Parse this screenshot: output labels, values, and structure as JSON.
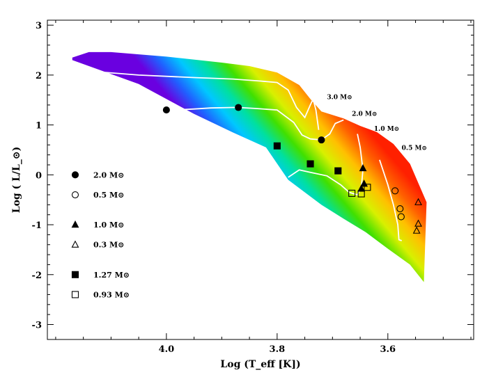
{
  "chart_data": {
    "type": "scatter",
    "title": "",
    "xlabel": "Log (T_eff [K])",
    "ylabel": "Log ( L/L_⊙)",
    "x_axis": {
      "range": [
        4.215,
        3.445
      ],
      "reversed": true,
      "ticks": [
        4.0,
        3.8,
        3.6
      ],
      "tick_labels": [
        "4.0",
        "3.8",
        "3.6"
      ]
    },
    "y_axis": {
      "range": [
        -3.3,
        3.1
      ],
      "ticks": [
        3,
        2,
        1,
        0,
        -1,
        -2,
        -3
      ],
      "tick_labels": [
        "3",
        "2",
        "1",
        "0",
        "-1",
        "-2",
        "-3"
      ]
    },
    "grid": false,
    "legend_position": "left",
    "background": {
      "description_free": true,
      "colormap": [
        "#6a00e0",
        "#2060ff",
        "#00c8ff",
        "#00e0a0",
        "#40e000",
        "#d8f000",
        "#ffc000",
        "#ff6000",
        "#ff2000"
      ],
      "band_top": [
        [
          4.17,
          2.35
        ],
        [
          4.14,
          2.46
        ],
        [
          4.1,
          2.46
        ],
        [
          4.0,
          2.37
        ],
        [
          3.9,
          2.25
        ],
        [
          3.85,
          2.18
        ],
        [
          3.8,
          2.05
        ],
        [
          3.76,
          1.8
        ],
        [
          3.74,
          1.52
        ],
        [
          3.72,
          1.27
        ],
        [
          3.68,
          1.13
        ],
        [
          3.65,
          0.98
        ],
        [
          3.62,
          0.86
        ],
        [
          3.59,
          0.62
        ],
        [
          3.56,
          0.22
        ],
        [
          3.53,
          -0.55
        ]
      ],
      "band_bottom": [
        [
          4.17,
          2.3
        ],
        [
          4.05,
          1.82
        ],
        [
          3.95,
          1.22
        ],
        [
          3.88,
          0.85
        ],
        [
          3.82,
          0.55
        ],
        [
          3.78,
          -0.1
        ],
        [
          3.72,
          -0.6
        ],
        [
          3.68,
          -0.88
        ],
        [
          3.64,
          -1.15
        ],
        [
          3.6,
          -1.48
        ],
        [
          3.56,
          -1.8
        ],
        [
          3.535,
          -2.15
        ]
      ]
    },
    "tracks": [
      {
        "mass_label": "3.0 M⊙",
        "label_at": [
          3.71,
          1.52
        ],
        "points": [
          [
            4.13,
            2.07
          ],
          [
            4.05,
            2.0
          ],
          [
            3.95,
            1.95
          ],
          [
            3.88,
            1.92
          ],
          [
            3.83,
            1.88
          ],
          [
            3.8,
            1.85
          ],
          [
            3.78,
            1.7
          ],
          [
            3.765,
            1.35
          ],
          [
            3.75,
            1.15
          ],
          [
            3.74,
            1.4
          ],
          [
            3.735,
            1.52
          ],
          [
            3.73,
            1.3
          ],
          [
            3.725,
            0.9
          ]
        ]
      },
      {
        "mass_label": "2.0 M⊙",
        "label_at": [
          3.665,
          1.18
        ],
        "points": [
          [
            3.985,
            1.3
          ],
          [
            3.95,
            1.32
          ],
          [
            3.92,
            1.34
          ],
          [
            3.88,
            1.35
          ],
          [
            3.87,
            1.35
          ],
          [
            3.84,
            1.33
          ],
          [
            3.8,
            1.3
          ],
          [
            3.77,
            1.05
          ],
          [
            3.755,
            0.8
          ],
          [
            3.74,
            0.72
          ],
          [
            3.72,
            0.7
          ],
          [
            3.705,
            0.82
          ],
          [
            3.695,
            1.03
          ],
          [
            3.68,
            1.1
          ]
        ]
      },
      {
        "mass_label": "1.0 M⊙",
        "label_at": [
          3.625,
          0.88
        ],
        "points": [
          [
            3.78,
            -0.05
          ],
          [
            3.76,
            0.1
          ],
          [
            3.74,
            0.05
          ],
          [
            3.71,
            -0.02
          ],
          [
            3.685,
            -0.2
          ],
          [
            3.67,
            -0.35
          ],
          [
            3.655,
            -0.4
          ],
          [
            3.648,
            -0.25
          ],
          [
            3.645,
            0.1
          ],
          [
            3.65,
            0.55
          ],
          [
            3.655,
            0.82
          ]
        ]
      },
      {
        "mass_label": "0.5 M⊙",
        "label_at": [
          3.575,
          0.5
        ],
        "points": [
          [
            3.615,
            0.3
          ],
          [
            3.6,
            -0.2
          ],
          [
            3.59,
            -0.6
          ],
          [
            3.582,
            -1.0
          ],
          [
            3.58,
            -1.3
          ],
          [
            3.575,
            -1.32
          ]
        ]
      }
    ],
    "legend": [
      {
        "marker": "filled-circle",
        "label": "2.0 M⊙",
        "y": 0.0
      },
      {
        "marker": "open-circle",
        "label": "0.5 M⊙",
        "y": -0.4
      },
      {
        "marker": "filled-triangle",
        "label": "1.0 M⊙",
        "y": -1.0
      },
      {
        "marker": "open-triangle",
        "label": "0.3 M⊙",
        "y": -1.4
      },
      {
        "marker": "filled-square",
        "label": "1.27 M⊙",
        "y": -2.0
      },
      {
        "marker": "open-square",
        "label": "0.93 M⊙",
        "y": -2.4
      }
    ],
    "series": [
      {
        "name": "2.0 M⊙",
        "marker": "filled-circle",
        "points": [
          [
            4.0,
            1.3
          ],
          [
            3.87,
            1.35
          ],
          [
            3.72,
            0.7
          ]
        ]
      },
      {
        "name": "0.5 M⊙",
        "marker": "open-circle",
        "points": [
          [
            3.587,
            -0.32
          ],
          [
            3.578,
            -0.68
          ],
          [
            3.576,
            -0.84
          ]
        ]
      },
      {
        "name": "1.0 M⊙",
        "marker": "filled-triangle",
        "points": [
          [
            3.645,
            0.13
          ],
          [
            3.643,
            -0.18
          ],
          [
            3.648,
            -0.28
          ]
        ]
      },
      {
        "name": "0.3 M⊙",
        "marker": "open-triangle",
        "points": [
          [
            3.545,
            -0.55
          ],
          [
            3.545,
            -0.98
          ],
          [
            3.548,
            -1.12
          ]
        ]
      },
      {
        "name": "1.27 M⊙",
        "marker": "filled-square",
        "points": [
          [
            3.8,
            0.58
          ],
          [
            3.74,
            0.22
          ],
          [
            3.69,
            0.08
          ]
        ]
      },
      {
        "name": "0.93 M⊙",
        "marker": "open-square",
        "points": [
          [
            3.665,
            -0.37
          ],
          [
            3.648,
            -0.38
          ],
          [
            3.637,
            -0.25
          ]
        ]
      }
    ]
  }
}
